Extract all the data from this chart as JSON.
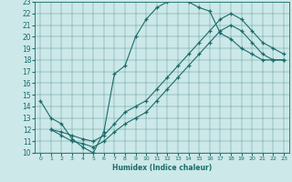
{
  "xlabel": "Humidex (Indice chaleur)",
  "xlim": [
    -0.5,
    23.5
  ],
  "ylim": [
    10,
    23
  ],
  "xticks": [
    0,
    1,
    2,
    3,
    4,
    5,
    6,
    7,
    8,
    9,
    10,
    11,
    12,
    13,
    14,
    15,
    16,
    17,
    18,
    19,
    20,
    21,
    22,
    23
  ],
  "yticks": [
    10,
    11,
    12,
    13,
    14,
    15,
    16,
    17,
    18,
    19,
    20,
    21,
    22,
    23
  ],
  "bg_color": "#cce8e8",
  "line_color": "#1a6b6b",
  "lines": [
    {
      "x": [
        0,
        1,
        2,
        3,
        4,
        5,
        5,
        6,
        7,
        8,
        9,
        10,
        11,
        12,
        13,
        14,
        15,
        16,
        17,
        18,
        19,
        20,
        21,
        22,
        23
      ],
      "y": [
        14.5,
        13.0,
        12.5,
        11.2,
        10.5,
        10.0,
        10.0,
        11.8,
        16.8,
        17.5,
        20.0,
        21.5,
        22.5,
        23.0,
        23.2,
        23.0,
        22.5,
        22.2,
        20.3,
        19.8,
        19.0,
        18.5,
        18.0,
        18.0,
        18.0
      ]
    },
    {
      "x": [
        1,
        2,
        3,
        4,
        5,
        6,
        7,
        8,
        9,
        10,
        11,
        12,
        13,
        14,
        15,
        16,
        17,
        18,
        19,
        20,
        21,
        22,
        23
      ],
      "y": [
        12.0,
        11.8,
        11.5,
        11.2,
        11.0,
        11.5,
        12.5,
        13.5,
        14.0,
        14.5,
        15.5,
        16.5,
        17.5,
        18.5,
        19.5,
        20.5,
        21.5,
        22.0,
        21.5,
        20.5,
        19.5,
        19.0,
        18.5
      ]
    },
    {
      "x": [
        1,
        2,
        3,
        4,
        5,
        6,
        7,
        8,
        9,
        10,
        11,
        12,
        13,
        14,
        15,
        16,
        17,
        18,
        19,
        20,
        21,
        22,
        23
      ],
      "y": [
        12.0,
        11.5,
        11.0,
        10.8,
        10.5,
        11.0,
        11.8,
        12.5,
        13.0,
        13.5,
        14.5,
        15.5,
        16.5,
        17.5,
        18.5,
        19.5,
        20.5,
        21.0,
        20.5,
        19.5,
        18.5,
        18.0,
        18.0
      ]
    }
  ]
}
